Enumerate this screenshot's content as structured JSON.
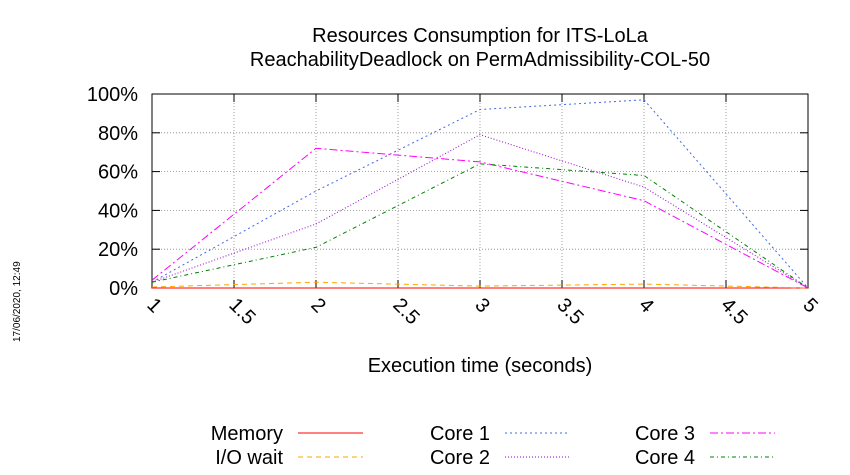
{
  "chart_data": {
    "type": "line",
    "title": "Resources Consumption for ITS-LoLa",
    "subtitle": "ReachabilityDeadlock on PermAdmissibility-COL-50",
    "xlabel": "Execution time (seconds)",
    "ylabel": "",
    "xlim": [
      1,
      5
    ],
    "ylim": [
      0,
      100
    ],
    "xticks": [
      "1",
      "1.5",
      "2",
      "2.5",
      "3",
      "3.5",
      "4",
      "4.5",
      "5"
    ],
    "yticks": [
      "0%",
      "20%",
      "40%",
      "60%",
      "80%",
      "100%"
    ],
    "grid": true,
    "legend_position": "bottom",
    "series": [
      {
        "name": "Memory",
        "color": "#ff0000",
        "dash": "",
        "x": [
          1,
          2,
          3,
          4,
          5
        ],
        "y": [
          0,
          0,
          0,
          0,
          0
        ]
      },
      {
        "name": "I/O wait",
        "color": "#ffa500",
        "dash": "5,4",
        "x": [
          1,
          2,
          3,
          4,
          5
        ],
        "y": [
          0.5,
          3,
          1,
          2,
          0
        ]
      },
      {
        "name": "Core 1",
        "color": "#4169e1",
        "dash": "2,3",
        "x": [
          1,
          2,
          3,
          4,
          5
        ],
        "y": [
          3,
          50,
          92,
          97,
          0
        ]
      },
      {
        "name": "Core 2",
        "color": "#9400d3",
        "dash": "1,2",
        "x": [
          1,
          2,
          3,
          4,
          5
        ],
        "y": [
          3,
          33,
          79,
          52,
          0
        ]
      },
      {
        "name": "Core 3",
        "color": "#ff00ff",
        "dash": "8,3,2,3",
        "x": [
          1,
          2,
          3,
          4,
          5
        ],
        "y": [
          4,
          72,
          65,
          45,
          0
        ]
      },
      {
        "name": "Core 4",
        "color": "#008000",
        "dash": "4,3,1,3",
        "x": [
          1,
          2,
          3,
          4,
          5
        ],
        "y": [
          3,
          21,
          64,
          58,
          0
        ]
      }
    ]
  },
  "timestamp": "17/06/2020, 12:49"
}
